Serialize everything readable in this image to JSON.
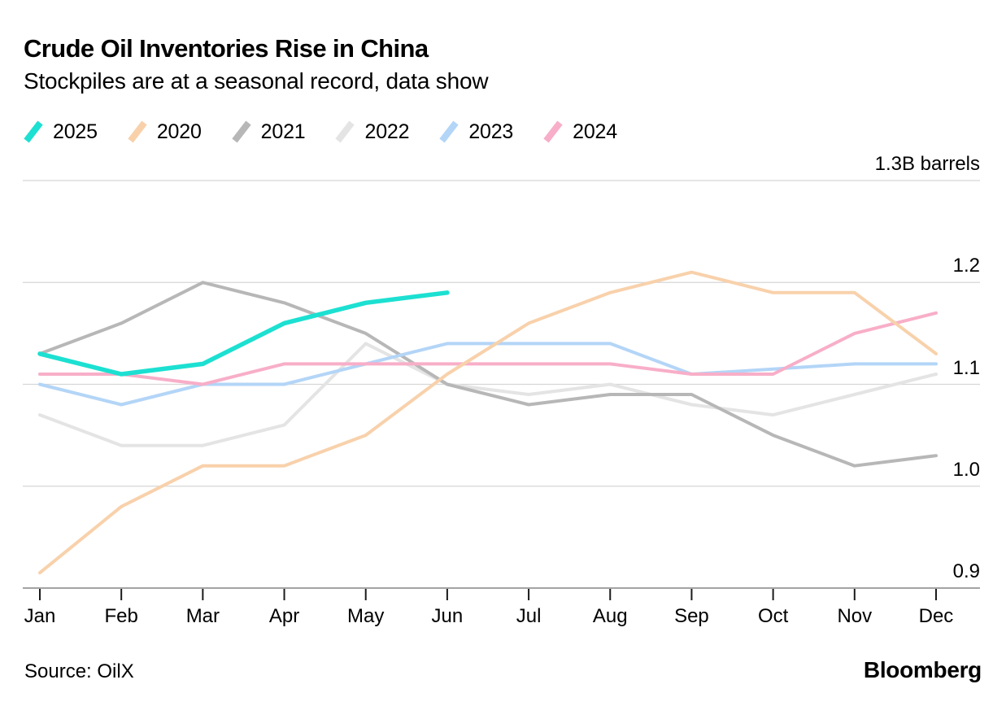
{
  "header": {
    "title": "Crude Oil Inventories Rise in China",
    "subtitle": "Stockpiles are at a seasonal record, data show"
  },
  "legend": [
    {
      "label": "2025",
      "color": "#1ce0d1"
    },
    {
      "label": "2020",
      "color": "#f8d1ab"
    },
    {
      "label": "2021",
      "color": "#b7b7b7"
    },
    {
      "label": "2022",
      "color": "#e4e4e4"
    },
    {
      "label": "2023",
      "color": "#b3d5f7"
    },
    {
      "label": "2024",
      "color": "#f8aec8"
    }
  ],
  "chart_data": {
    "type": "line",
    "x": [
      "Jan",
      "Feb",
      "Mar",
      "Apr",
      "May",
      "Jun",
      "Jul",
      "Aug",
      "Sep",
      "Oct",
      "Nov",
      "Dec"
    ],
    "ylabel": "billion barrels",
    "ylim": [
      0.9,
      1.3
    ],
    "y_ticks": [
      1.3,
      1.2,
      1.1,
      1.0,
      0.9
    ],
    "y_tick_labels": [
      "1.3B barrels",
      "1.2",
      "1.1",
      "1.0",
      "0.9"
    ],
    "grid": "horizontal",
    "legend_position": "top-left",
    "draw_order": [
      "2022",
      "2021",
      "2023",
      "2024",
      "2020",
      "2025"
    ],
    "series": [
      {
        "name": "2025",
        "color": "#1ce0d1",
        "stroke_width": 5.5,
        "values": [
          1.13,
          1.11,
          1.12,
          1.16,
          1.18,
          1.19
        ]
      },
      {
        "name": "2020",
        "color": "#f8d1ab",
        "stroke_width": 4,
        "values": [
          0.915,
          0.98,
          1.02,
          1.02,
          1.05,
          1.11,
          1.16,
          1.19,
          1.21,
          1.19,
          1.19,
          1.13
        ]
      },
      {
        "name": "2021",
        "color": "#b7b7b7",
        "stroke_width": 4,
        "values": [
          1.13,
          1.16,
          1.2,
          1.18,
          1.15,
          1.1,
          1.08,
          1.09,
          1.09,
          1.05,
          1.02,
          1.03
        ]
      },
      {
        "name": "2022",
        "color": "#e4e4e4",
        "stroke_width": 4,
        "values": [
          1.07,
          1.04,
          1.04,
          1.06,
          1.14,
          1.1,
          1.09,
          1.1,
          1.08,
          1.07,
          1.09,
          1.11
        ]
      },
      {
        "name": "2023",
        "color": "#b3d5f7",
        "stroke_width": 4,
        "values": [
          1.1,
          1.08,
          1.1,
          1.1,
          1.12,
          1.14,
          1.14,
          1.14,
          1.11,
          1.115,
          1.12,
          1.12
        ]
      },
      {
        "name": "2024",
        "color": "#f8aec8",
        "stroke_width": 4,
        "values": [
          1.11,
          1.11,
          1.1,
          1.12,
          1.12,
          1.12,
          1.12,
          1.12,
          1.11,
          1.11,
          1.15,
          1.17
        ]
      }
    ],
    "colors": {
      "gridline": "#d6d6d6",
      "baseline": "#a3a3a3",
      "tick": "#1a1a1a"
    }
  },
  "footer": {
    "source": "Source: OilX",
    "brand": "Bloomberg"
  }
}
